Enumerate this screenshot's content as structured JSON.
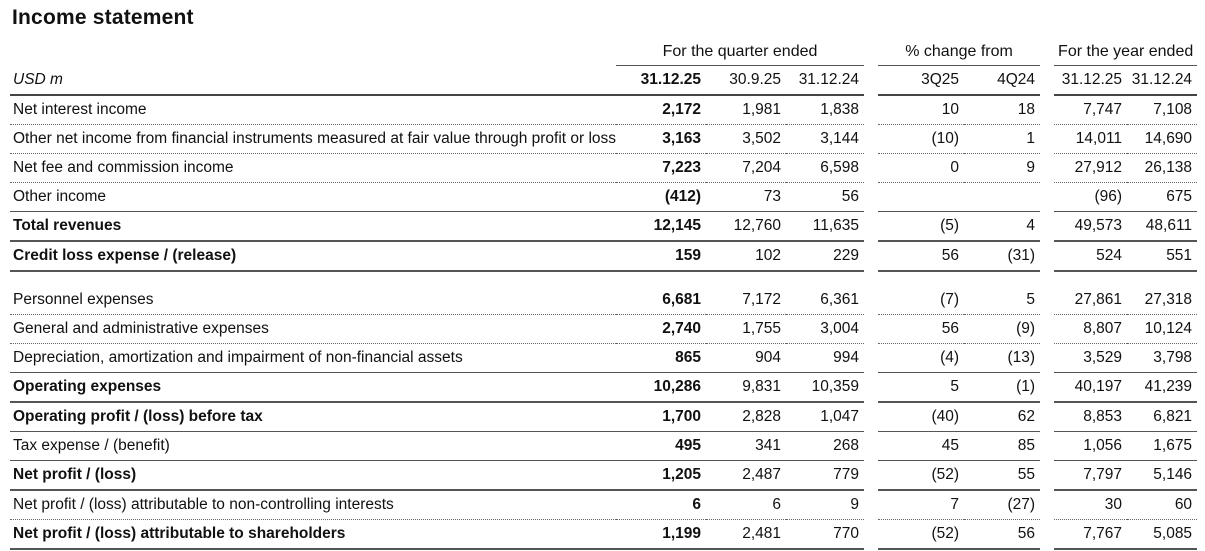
{
  "title": "Income statement",
  "group_headers": {
    "quarter": "For the quarter ended",
    "change": "% change from",
    "year": "For the year ended"
  },
  "columns": {
    "unit": "USD m",
    "q_cur": "31.12.25",
    "q_prev": "30.9.25",
    "q_py": "31.12.24",
    "chg_q": "3Q25",
    "chg_y": "4Q24",
    "y_cur": "31.12.25",
    "y_prev": "31.12.24"
  },
  "rows": [
    {
      "label": "Net interest income",
      "q_cur": "2,172",
      "q_prev": "1,981",
      "q_py": "1,838",
      "chg_q": "10",
      "chg_y": "18",
      "y_cur": "7,747",
      "y_prev": "7,108"
    },
    {
      "label": "Other net income from financial instruments measured at fair value through profit or loss",
      "q_cur": "3,163",
      "q_prev": "3,502",
      "q_py": "3,144",
      "chg_q": "(10)",
      "chg_y": "1",
      "y_cur": "14,011",
      "y_prev": "14,690"
    },
    {
      "label": "Net fee and commission income",
      "q_cur": "7,223",
      "q_prev": "7,204",
      "q_py": "6,598",
      "chg_q": "0",
      "chg_y": "9",
      "y_cur": "27,912",
      "y_prev": "26,138"
    },
    {
      "label": "Other income",
      "q_cur": "(412)",
      "q_prev": "73",
      "q_py": "56",
      "chg_q": "",
      "chg_y": "",
      "y_cur": "(96)",
      "y_prev": "675"
    },
    {
      "label": "Total revenues",
      "q_cur": "12,145",
      "q_prev": "12,760",
      "q_py": "11,635",
      "chg_q": "(5)",
      "chg_y": "4",
      "y_cur": "49,573",
      "y_prev": "48,611"
    },
    {
      "label": "Credit loss expense / (release)",
      "q_cur": "159",
      "q_prev": "102",
      "q_py": "229",
      "chg_q": "56",
      "chg_y": "(31)",
      "y_cur": "524",
      "y_prev": "551"
    },
    {
      "label": "Personnel expenses",
      "q_cur": "6,681",
      "q_prev": "7,172",
      "q_py": "6,361",
      "chg_q": "(7)",
      "chg_y": "5",
      "y_cur": "27,861",
      "y_prev": "27,318"
    },
    {
      "label": "General and administrative expenses",
      "q_cur": "2,740",
      "q_prev": "1,755",
      "q_py": "3,004",
      "chg_q": "56",
      "chg_y": "(9)",
      "y_cur": "8,807",
      "y_prev": "10,124"
    },
    {
      "label": "Depreciation, amortization and impairment of non-financial assets",
      "q_cur": "865",
      "q_prev": "904",
      "q_py": "994",
      "chg_q": "(4)",
      "chg_y": "(13)",
      "y_cur": "3,529",
      "y_prev": "3,798"
    },
    {
      "label": "Operating expenses",
      "q_cur": "10,286",
      "q_prev": "9,831",
      "q_py": "10,359",
      "chg_q": "5",
      "chg_y": "(1)",
      "y_cur": "40,197",
      "y_prev": "41,239"
    },
    {
      "label": "Operating profit / (loss) before tax",
      "q_cur": "1,700",
      "q_prev": "2,828",
      "q_py": "1,047",
      "chg_q": "(40)",
      "chg_y": "62",
      "y_cur": "8,853",
      "y_prev": "6,821"
    },
    {
      "label": "Tax expense / (benefit)",
      "q_cur": "495",
      "q_prev": "341",
      "q_py": "268",
      "chg_q": "45",
      "chg_y": "85",
      "y_cur": "1,056",
      "y_prev": "1,675"
    },
    {
      "label": "Net profit / (loss)",
      "q_cur": "1,205",
      "q_prev": "2,487",
      "q_py": "779",
      "chg_q": "(52)",
      "chg_y": "55",
      "y_cur": "7,797",
      "y_prev": "5,146"
    },
    {
      "label": "Net profit / (loss) attributable to non-controlling interests",
      "q_cur": "6",
      "q_prev": "6",
      "q_py": "9",
      "chg_q": "7",
      "chg_y": "(27)",
      "y_cur": "30",
      "y_prev": "60"
    },
    {
      "label": "Net profit / (loss) attributable to shareholders",
      "q_cur": "1,199",
      "q_prev": "2,481",
      "q_py": "770",
      "chg_q": "(52)",
      "chg_y": "56",
      "y_cur": "7,767",
      "y_prev": "5,085"
    }
  ]
}
